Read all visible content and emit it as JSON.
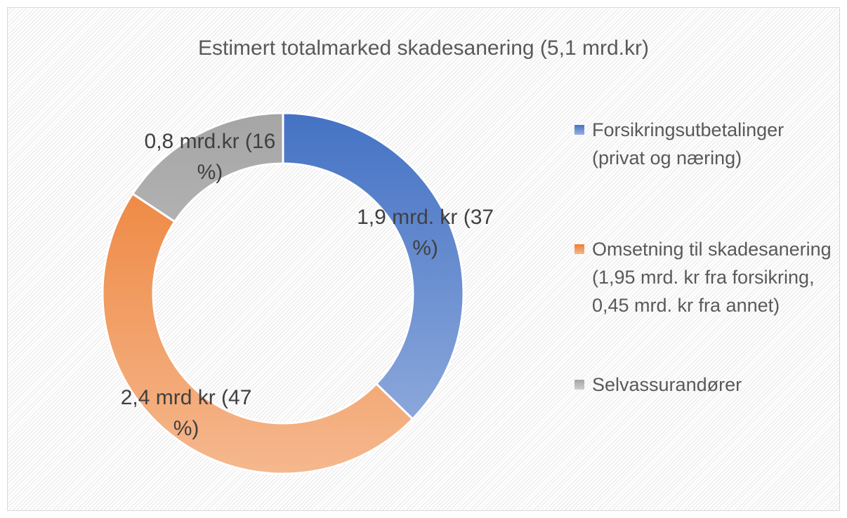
{
  "chart_data": {
    "type": "donut",
    "title": "Estimert totalmarked skadesanering (5,1 mrd.kr)",
    "categories": [
      "Forsikringsutbetalinger (privat og næring)",
      "Omsetning til skadesanering (1,95 mrd. kr fra forsikring, 0,45 mrd. kr fra annet)",
      "Selvassurandører"
    ],
    "values": [
      1.9,
      2.4,
      0.8
    ],
    "value_labels": [
      "1,9 mrd. kr (37 %)",
      "2,4 mrd kr (47 %)",
      "0,8 mrd.kr (16 %)"
    ],
    "colors": [
      "#4472c4",
      "#ed7d31",
      "#a5a5a5"
    ],
    "legend": "right"
  }
}
